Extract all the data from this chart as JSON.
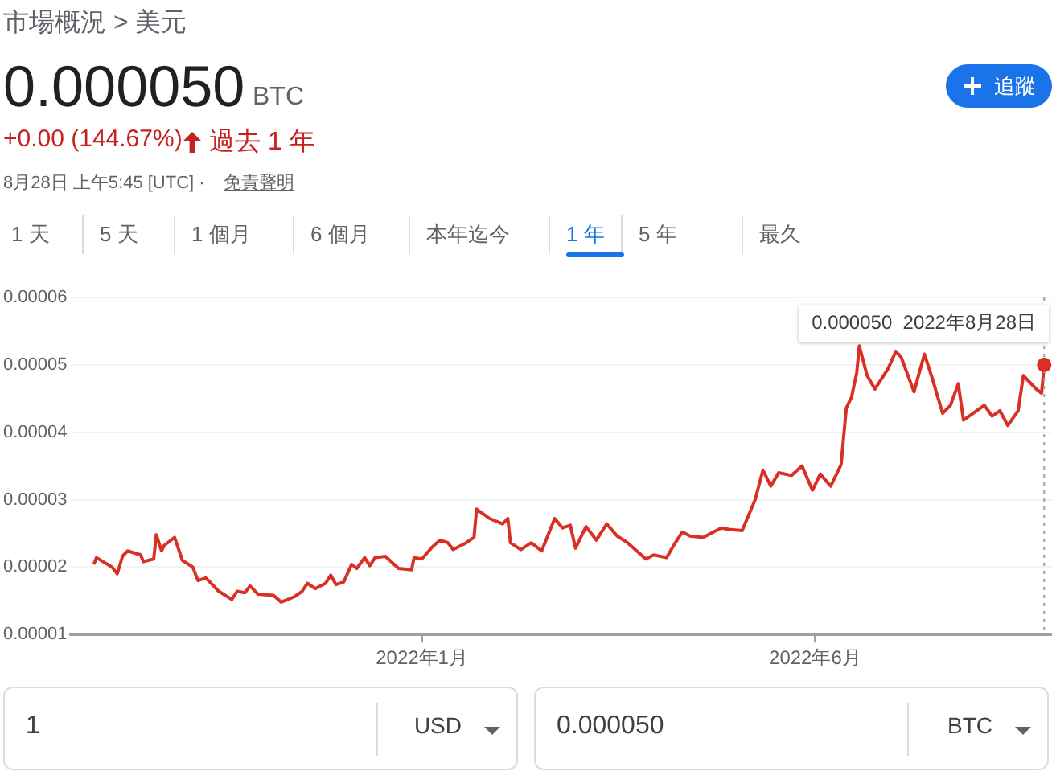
{
  "chart_data": {
    "type": "line",
    "title": "0.000050",
    "subtitle": "市場概況 > 美元",
    "annotations": [
      {
        "text": "0.000050  2022年8月28日",
        "x": "2022-08-28",
        "y": 5e-05
      },
      "BTC",
      "+0.00 (144.67%)",
      "過去 1 年",
      "8月28日 上午5:45 [UTC] ·",
      "免責聲明",
      "1 天",
      "5 天",
      "1 個月",
      "6 個月",
      "本年迄今",
      "1 年",
      "5 年",
      "最久",
      "追蹤",
      "1",
      "USD",
      "0.000050",
      "BTC"
    ],
    "x": [
      "2021-08-28",
      "2021-08-29",
      "2021-09-04",
      "2021-09-06",
      "2021-09-08",
      "2021-09-10",
      "2021-09-15",
      "2021-09-16",
      "2021-09-20",
      "2021-09-21",
      "2021-09-23",
      "2021-09-24",
      "2021-09-28",
      "2021-10-01",
      "2021-10-05",
      "2021-10-07",
      "2021-10-10",
      "2021-10-12",
      "2021-10-15",
      "2021-10-20",
      "2021-10-22",
      "2021-10-25",
      "2021-10-27",
      "2021-10-30",
      "2021-11-05",
      "2021-11-08",
      "2021-11-13",
      "2021-11-16",
      "2021-11-18",
      "2021-11-21",
      "2021-11-25",
      "2021-11-27",
      "2021-11-29",
      "2021-12-02",
      "2021-12-05",
      "2021-12-07",
      "2021-12-10",
      "2021-12-12",
      "2021-12-14",
      "2021-12-18",
      "2021-12-23",
      "2021-12-28",
      "2021-12-29",
      "2022-01-01",
      "2022-01-05",
      "2022-01-08",
      "2022-01-11",
      "2022-01-13",
      "2022-01-18",
      "2022-01-21",
      "2022-01-22",
      "2022-01-27",
      "2022-02-01",
      "2022-02-03",
      "2022-02-04",
      "2022-02-08",
      "2022-02-12",
      "2022-02-16",
      "2022-02-21",
      "2022-02-24",
      "2022-02-27",
      "2022-03-01",
      "2022-03-05",
      "2022-03-09",
      "2022-03-13",
      "2022-03-17",
      "2022-03-21",
      "2022-03-28",
      "2022-03-31",
      "2022-04-05",
      "2022-04-08",
      "2022-04-11",
      "2022-04-14",
      "2022-04-19",
      "2022-04-26",
      "2022-04-29",
      "2022-05-04",
      "2022-05-09",
      "2022-05-12",
      "2022-05-15",
      "2022-05-18",
      "2022-05-23",
      "2022-05-27",
      "2022-05-31",
      "2022-06-03",
      "2022-06-07",
      "2022-06-11",
      "2022-06-13",
      "2022-06-15",
      "2022-06-17",
      "2022-06-18",
      "2022-06-21",
      "2022-06-24",
      "2022-06-29",
      "2022-07-02",
      "2022-07-04",
      "2022-07-09",
      "2022-07-13",
      "2022-07-16",
      "2022-07-20",
      "2022-07-23",
      "2022-07-26",
      "2022-07-28",
      "2022-08-05",
      "2022-08-08",
      "2022-08-11",
      "2022-08-14",
      "2022-08-18",
      "2022-08-20",
      "2022-08-25",
      "2022-08-27",
      "2022-08-28"
    ],
    "values": [
      2.04e-05,
      2.14e-05,
      2e-05,
      1.9e-05,
      2.16e-05,
      2.24e-05,
      2.18e-05,
      2.08e-05,
      2.12e-05,
      2.48e-05,
      2.24e-05,
      2.32e-05,
      2.44e-05,
      2.1e-05,
      2e-05,
      1.8e-05,
      1.84e-05,
      1.76e-05,
      1.64e-05,
      1.52e-05,
      1.64e-05,
      1.62e-05,
      1.72e-05,
      1.6e-05,
      1.58e-05,
      1.48e-05,
      1.56e-05,
      1.64e-05,
      1.76e-05,
      1.68e-05,
      1.76e-05,
      1.88e-05,
      1.74e-05,
      1.78e-05,
      2.04e-05,
      1.98e-05,
      2.14e-05,
      2.02e-05,
      2.14e-05,
      2.16e-05,
      1.98e-05,
      1.96e-05,
      2.14e-05,
      2.12e-05,
      2.3e-05,
      2.4e-05,
      2.36e-05,
      2.26e-05,
      2.36e-05,
      2.44e-05,
      2.86e-05,
      2.72e-05,
      2.64e-05,
      2.72e-05,
      2.36e-05,
      2.26e-05,
      2.36e-05,
      2.24e-05,
      2.72e-05,
      2.58e-05,
      2.62e-05,
      2.28e-05,
      2.6e-05,
      2.4e-05,
      2.64e-05,
      2.46e-05,
      2.36e-05,
      2.12e-05,
      2.18e-05,
      2.14e-05,
      2.34e-05,
      2.52e-05,
      2.46e-05,
      2.44e-05,
      2.58e-05,
      2.56e-05,
      2.54e-05,
      3e-05,
      3.44e-05,
      3.2e-05,
      3.4e-05,
      3.36e-05,
      3.5e-05,
      3.14e-05,
      3.38e-05,
      3.2e-05,
      3.52e-05,
      4.36e-05,
      4.52e-05,
      4.88e-05,
      5.28e-05,
      4.84e-05,
      4.64e-05,
      4.94e-05,
      5.2e-05,
      5.12e-05,
      4.6e-05,
      5.16e-05,
      4.8e-05,
      4.28e-05,
      4.4e-05,
      4.72e-05,
      4.18e-05,
      4.4e-05,
      4.24e-05,
      4.32e-05,
      4.1e-05,
      4.32e-05,
      4.84e-05,
      4.64e-05,
      4.58e-05,
      5e-05
    ],
    "color": "#d93025",
    "xlim": [
      "2021-08-19",
      "2022-08-31"
    ],
    "xticks": [
      {
        "value": "2022-01-01",
        "label": "2022年1月"
      },
      {
        "value": "2022-06-01",
        "label": "2022年6月"
      }
    ],
    "ylim": [
      1e-05,
      6e-05
    ],
    "yticks": [
      {
        "value": 1e-05,
        "label": "0.00001"
      },
      {
        "value": 2e-05,
        "label": "0.00002"
      },
      {
        "value": 3e-05,
        "label": "0.00003"
      },
      {
        "value": 4e-05,
        "label": "0.00004"
      },
      {
        "value": 5e-05,
        "label": "0.00005"
      },
      {
        "value": 6e-05,
        "label": "0.00006"
      }
    ],
    "grid": "y",
    "ref_lines": [
      {
        "axis": "x",
        "value": "2022-08-28",
        "color": "#9aa0a6",
        "line_style": "dotted"
      }
    ]
  }
}
